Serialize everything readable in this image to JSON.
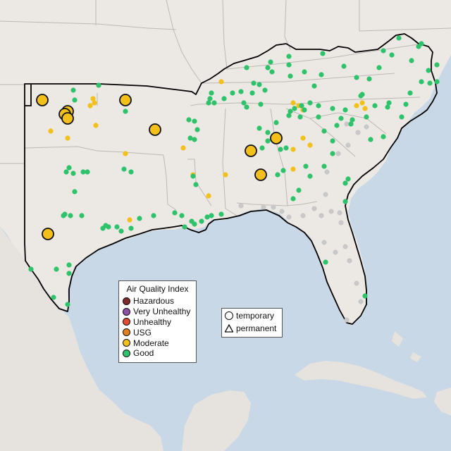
{
  "colors": {
    "water": "#c9d8e6",
    "land": "#ece8e4",
    "outside_land": "#e6e2de",
    "region_border": "#000000",
    "state_border": "#bdb8b4",
    "hazardous": "#7e2b2b",
    "very_unhealthy": "#8e4fa6",
    "unhealthy": "#e34a33",
    "usg": "#e3801c",
    "moderate": "#f2c018",
    "good": "#2ec26a",
    "no_data": "#c8c8c8"
  },
  "aqi_legend": {
    "title": "Air Quality Index",
    "items": [
      {
        "label": "Hazardous",
        "color": "#7e2b2b"
      },
      {
        "label": "Very Unhealthy",
        "color": "#8e4fa6"
      },
      {
        "label": "Unhealthy",
        "color": "#e34a33"
      },
      {
        "label": "USG",
        "color": "#e3801c"
      },
      {
        "label": "Moderate",
        "color": "#f2c018"
      },
      {
        "label": "Good",
        "color": "#2ec26a"
      }
    ]
  },
  "monitor_type_legend": {
    "items": [
      {
        "label": "temporary",
        "shape": "circle"
      },
      {
        "label": "permanent",
        "shape": "triangle"
      }
    ]
  }
}
